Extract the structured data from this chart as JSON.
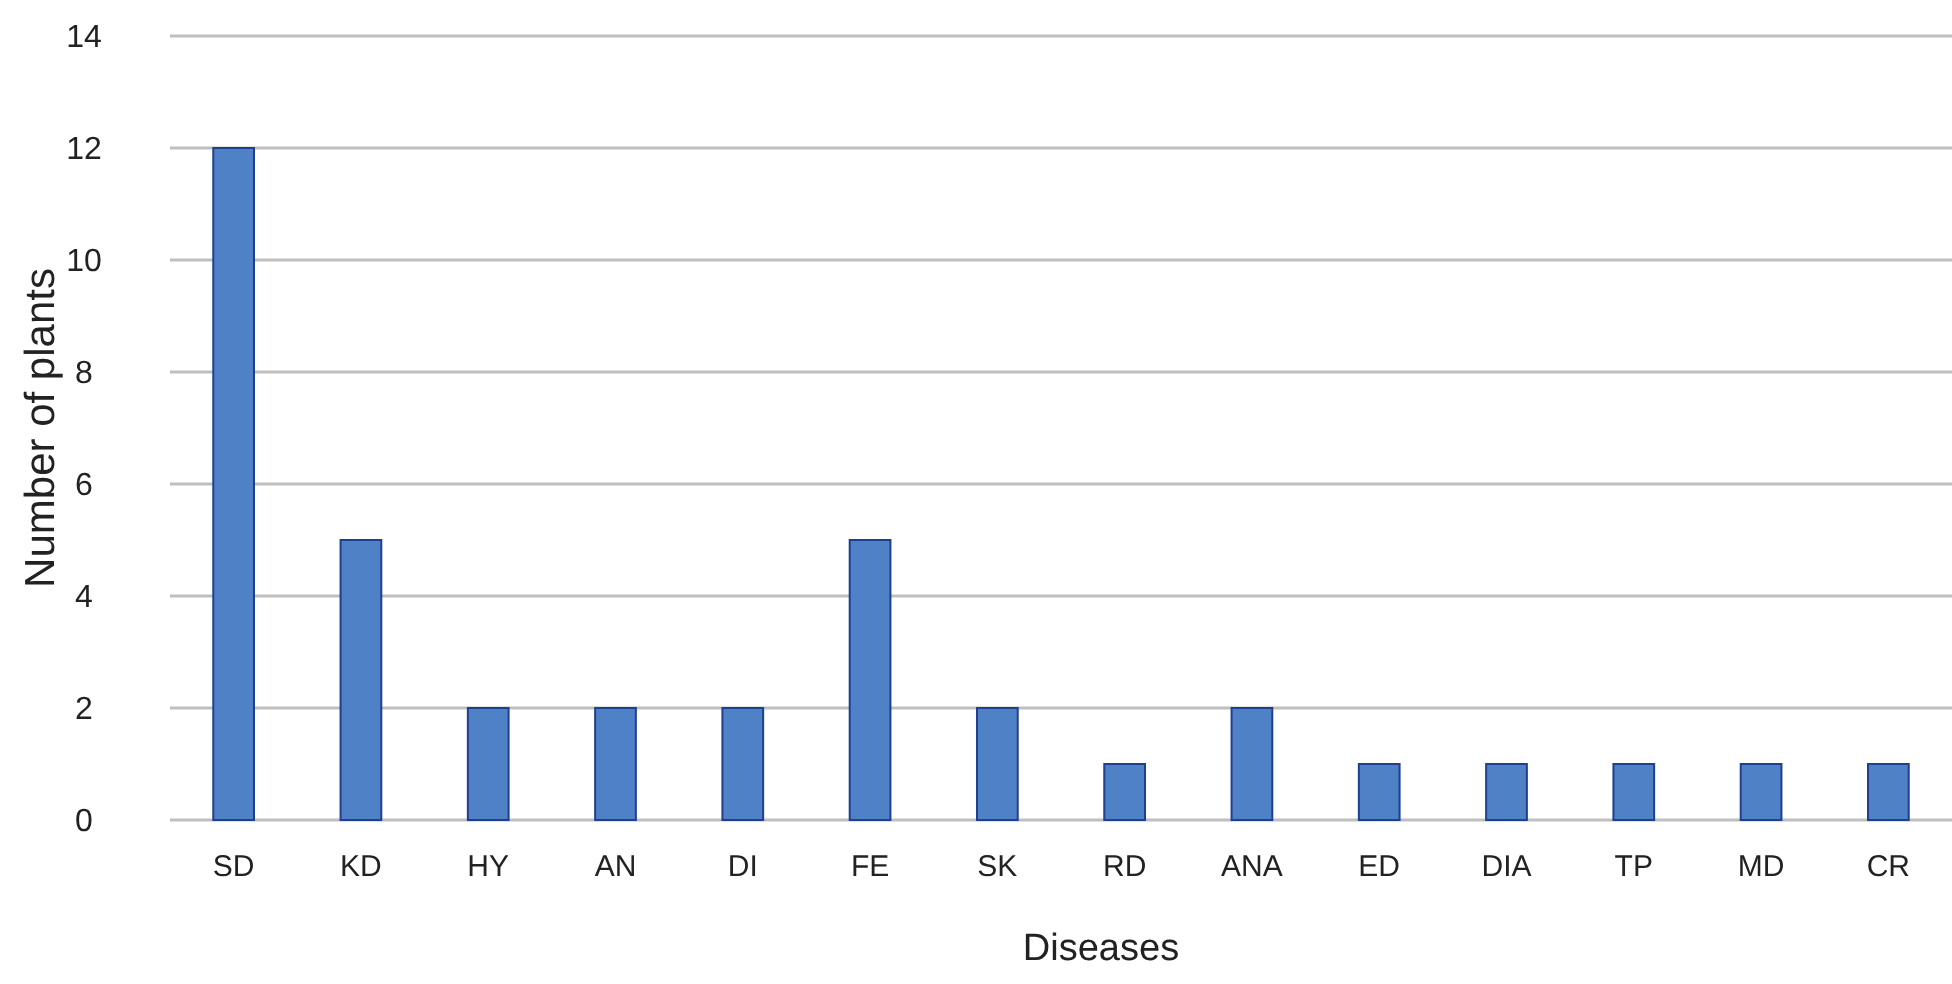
{
  "chart_data": {
    "type": "bar",
    "xlabel": "Diseases",
    "ylabel": "Number of plants",
    "categories": [
      "SD",
      "KD",
      "HY",
      "AN",
      "DI",
      "FE",
      "SK",
      "RD",
      "ANA",
      "ED",
      "DIA",
      "TP",
      "MD",
      "CR"
    ],
    "values": [
      12,
      5,
      2,
      2,
      2,
      5,
      2,
      1,
      2,
      1,
      1,
      1,
      1,
      1
    ],
    "color": "#4f81c7",
    "ylim": [
      0,
      14
    ],
    "yticks": [
      0,
      2,
      4,
      6,
      8,
      10,
      12,
      14
    ],
    "grid": "y"
  }
}
